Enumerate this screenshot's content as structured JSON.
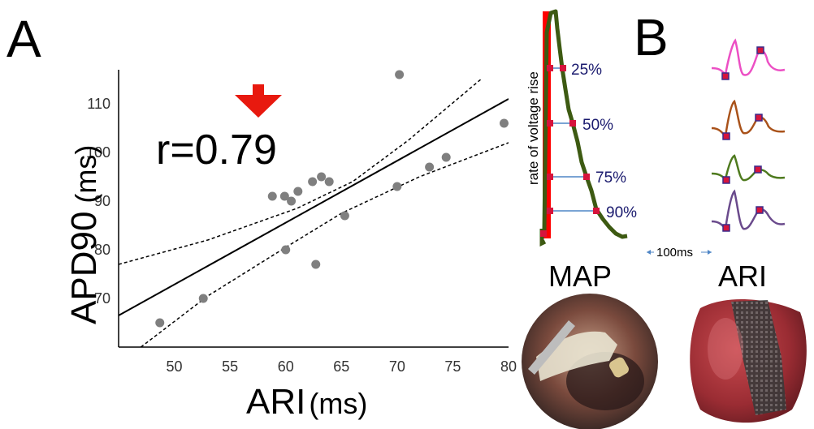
{
  "panel_a_letter": "A",
  "panel_b_letter": "B",
  "annotation": "r=0.79",
  "map_title": "MAP",
  "ari_title": "ARI",
  "rise_label": "rate of  voltage  rise",
  "scale_label": "100ms",
  "percent_labels": [
    "25%",
    "50%",
    "75%",
    "90%"
  ],
  "colors": {
    "arrow": "#e8190f",
    "points": "#7f7f7f",
    "map_trace": "#3d5a12",
    "upstroke": "#ff0000",
    "marker": "#d6143c",
    "level_line": "#4f86c6",
    "ari_traces": [
      "#ec4fc4",
      "#a9521a",
      "#4e7a1e",
      "#6a4a8c"
    ]
  },
  "chart_data": {
    "type": "scatter",
    "xlabel": "ARI",
    "xlabel_unit": "(ms)",
    "ylabel": "APD90",
    "ylabel_unit": "(ms)",
    "xlim": [
      45,
      80
    ],
    "ylim": [
      60,
      117
    ],
    "xticks": [
      50,
      55,
      60,
      65,
      70,
      75,
      80
    ],
    "yticks": [
      70,
      80,
      90,
      100,
      110
    ],
    "r": 0.79,
    "points": [
      {
        "x": 48.7,
        "y": 65
      },
      {
        "x": 52.6,
        "y": 70
      },
      {
        "x": 58.8,
        "y": 91
      },
      {
        "x": 59.9,
        "y": 91
      },
      {
        "x": 60.5,
        "y": 90
      },
      {
        "x": 61.1,
        "y": 92
      },
      {
        "x": 60.0,
        "y": 80
      },
      {
        "x": 62.4,
        "y": 94
      },
      {
        "x": 63.2,
        "y": 95
      },
      {
        "x": 63.9,
        "y": 94
      },
      {
        "x": 62.7,
        "y": 77
      },
      {
        "x": 65.3,
        "y": 87
      },
      {
        "x": 70.0,
        "y": 93
      },
      {
        "x": 70.2,
        "y": 116
      },
      {
        "x": 72.9,
        "y": 97
      },
      {
        "x": 74.4,
        "y": 99
      },
      {
        "x": 79.6,
        "y": 106
      }
    ],
    "fit_line": {
      "x": [
        45,
        80
      ],
      "y": [
        66.5,
        111
      ]
    },
    "ci_upper": {
      "x": [
        45,
        53,
        61,
        66,
        71,
        77.5
      ],
      "y": [
        77,
        82,
        88.5,
        94,
        102.5,
        115
      ]
    },
    "ci_lower": {
      "x": [
        47,
        53,
        60,
        65,
        72,
        80
      ],
      "y": [
        60,
        70.5,
        80.5,
        87.5,
        95,
        102
      ]
    }
  }
}
